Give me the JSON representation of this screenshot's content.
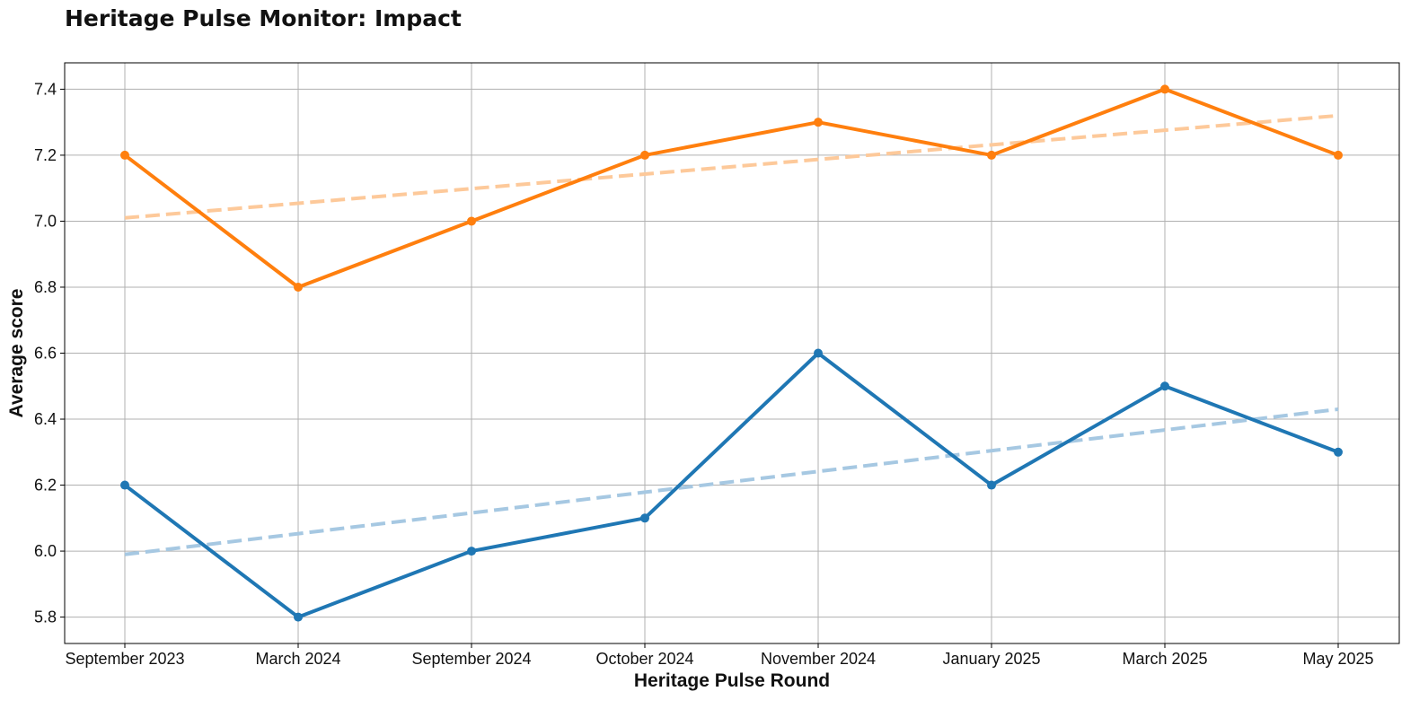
{
  "chart_data": {
    "type": "line",
    "title": "Heritage Pulse Monitor: Impact",
    "xlabel": "Heritage Pulse Round",
    "ylabel": "Average score",
    "categories": [
      "September 2023",
      "March 2024",
      "September 2024",
      "October 2024",
      "November 2024",
      "January 2025",
      "March 2025",
      "May 2025"
    ],
    "ylim": [
      5.72,
      7.48
    ],
    "yticks": [
      "5.8",
      "6.0",
      "6.2",
      "6.4",
      "6.6",
      "6.8",
      "7.0",
      "7.2",
      "7.4"
    ],
    "grid": true,
    "legend": "none",
    "series": [
      {
        "values": [
          6.2,
          5.8,
          6.0,
          6.1,
          6.6,
          6.2,
          6.5,
          6.3
        ],
        "color": "#1f77b4",
        "trend": [
          5.99,
          6.43
        ],
        "trend_color": "#a6c8e2"
      },
      {
        "values": [
          7.2,
          6.8,
          7.0,
          7.2,
          7.3,
          7.2,
          7.4,
          7.2
        ],
        "color": "#ff7f0e",
        "trend": [
          7.01,
          7.32
        ],
        "trend_color": "#fdc99a"
      }
    ]
  }
}
